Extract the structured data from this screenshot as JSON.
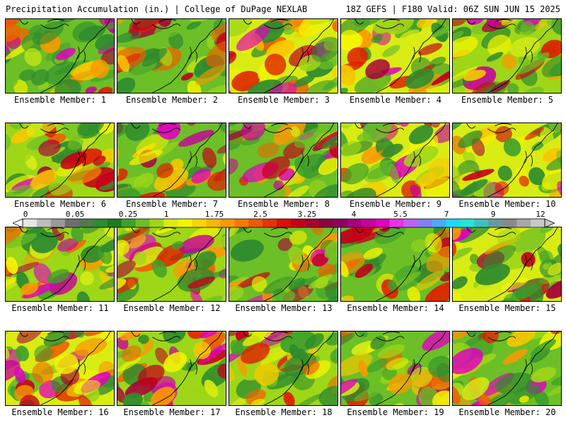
{
  "header": {
    "left": "Precipitation Accumulation (in.) | College of DuPage NEXLAB",
    "right": "18Z GEFS | F180 Valid: 06Z SUN JUN 15 2025"
  },
  "colorbar": {
    "labels": [
      "0",
      "0.05",
      "0.25",
      "1",
      "1.75",
      "2.5",
      "3.25",
      "4",
      "5.5",
      "7",
      "9",
      "12"
    ],
    "colors": [
      "#e6e6e6",
      "#bdbdbd",
      "#9a9a9a",
      "#6e6e6e",
      "#4e7a4e",
      "#2e8b2e",
      "#1f7a1f",
      "#3fa12a",
      "#6cbf26",
      "#9ed618",
      "#d8ec14",
      "#f4f400",
      "#f8d800",
      "#f8b800",
      "#f89a00",
      "#f47a00",
      "#ec5a00",
      "#e43400",
      "#dc1000",
      "#c40018",
      "#a80030",
      "#8c0040",
      "#8c0060",
      "#a8007c",
      "#c8009c",
      "#e000c0",
      "#ec30e8",
      "#c060f4",
      "#8080f4",
      "#50a8f4",
      "#20d8f4",
      "#20e8d8",
      "#40c0c0",
      "#6a9a9a",
      "#8a8a8a",
      "#a8a8a8",
      "#c8c8c8"
    ]
  },
  "members": [
    {
      "label": "Ensemble Member: 1"
    },
    {
      "label": "Ensemble Member: 2"
    },
    {
      "label": "Ensemble Member: 3"
    },
    {
      "label": "Ensemble Member: 4"
    },
    {
      "label": "Ensemble Member: 5"
    },
    {
      "label": "Ensemble Member: 6"
    },
    {
      "label": "Ensemble Member: 7"
    },
    {
      "label": "Ensemble Member: 8"
    },
    {
      "label": "Ensemble Member: 9"
    },
    {
      "label": "Ensemble Member: 10"
    },
    {
      "label": "Ensemble Member: 11"
    },
    {
      "label": "Ensemble Member: 12"
    },
    {
      "label": "Ensemble Member: 13"
    },
    {
      "label": "Ensemble Member: 14"
    },
    {
      "label": "Ensemble Member: 15"
    },
    {
      "label": "Ensemble Member: 16"
    },
    {
      "label": "Ensemble Member: 17"
    },
    {
      "label": "Ensemble Member: 18"
    },
    {
      "label": "Ensemble Member: 19"
    },
    {
      "label": "Ensemble Member: 20"
    }
  ]
}
